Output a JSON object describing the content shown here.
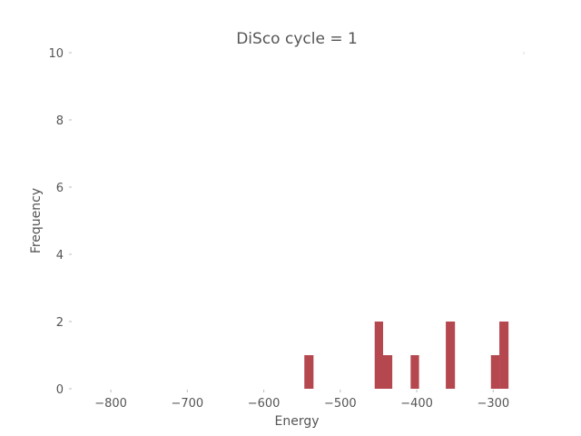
{
  "chart_data": {
    "type": "bar",
    "title": "DiSco cycle = 1",
    "xlabel": "Energy",
    "ylabel": "Frequency",
    "xlim": [
      -850,
      -260
    ],
    "ylim": [
      0,
      10
    ],
    "xticks": [
      -800,
      -700,
      -600,
      -500,
      -400,
      -300
    ],
    "xtick_labels": [
      "−800",
      "−700",
      "−600",
      "−500",
      "−400",
      "−300"
    ],
    "yticks": [
      0,
      2,
      4,
      6,
      8,
      10
    ],
    "ytick_labels": [
      "0",
      "2",
      "4",
      "6",
      "8",
      "10"
    ],
    "grid": false,
    "bar_color": "#b5474f",
    "bins": [
      {
        "x0": -547,
        "x1": -535,
        "count": 1
      },
      {
        "x0": -455,
        "x1": -444,
        "count": 2
      },
      {
        "x0": -444,
        "x1": -432,
        "count": 1
      },
      {
        "x0": -408,
        "x1": -397,
        "count": 1
      },
      {
        "x0": -362,
        "x1": -350,
        "count": 2
      },
      {
        "x0": -303,
        "x1": -292,
        "count": 1
      },
      {
        "x0": -292,
        "x1": -280,
        "count": 2
      }
    ]
  }
}
